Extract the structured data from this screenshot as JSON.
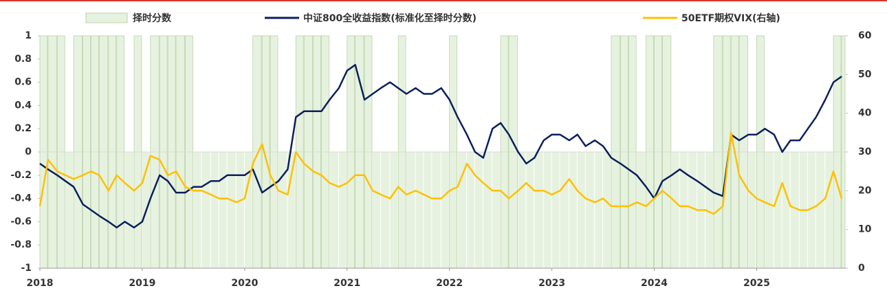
{
  "chart_data": {
    "type": "line",
    "x": [
      2018.0,
      2018.08,
      2018.17,
      2018.25,
      2018.33,
      2018.42,
      2018.5,
      2018.58,
      2018.67,
      2018.75,
      2018.83,
      2018.92,
      2019.0,
      2019.08,
      2019.17,
      2019.25,
      2019.33,
      2019.42,
      2019.5,
      2019.58,
      2019.67,
      2019.75,
      2019.83,
      2019.92,
      2020.0,
      2020.08,
      2020.17,
      2020.25,
      2020.33,
      2020.42,
      2020.5,
      2020.58,
      2020.67,
      2020.75,
      2020.83,
      2020.92,
      2021.0,
      2021.08,
      2021.17,
      2021.25,
      2021.33,
      2021.42,
      2021.5,
      2021.58,
      2021.67,
      2021.75,
      2021.83,
      2021.92,
      2022.0,
      2022.08,
      2022.17,
      2022.25,
      2022.33,
      2022.42,
      2022.5,
      2022.58,
      2022.67,
      2022.75,
      2022.83,
      2022.92,
      2023.0,
      2023.08,
      2023.17,
      2023.25,
      2023.33,
      2023.42,
      2023.5,
      2023.58,
      2023.67,
      2023.75,
      2023.83,
      2023.92,
      2024.0,
      2024.08,
      2024.17,
      2024.25,
      2024.33,
      2024.42,
      2024.5,
      2024.58,
      2024.67,
      2024.75,
      2024.83,
      2024.92,
      2025.0,
      2025.08,
      2025.17,
      2025.25,
      2025.33,
      2025.42,
      2025.5,
      2025.58,
      2025.67,
      2025.75,
      2025.83
    ],
    "series": [
      {
        "name": "择时分数",
        "type": "bar",
        "color": "#e6f2df",
        "values": [
          1,
          1,
          1,
          0,
          1,
          1,
          1,
          1,
          1,
          1,
          0,
          1,
          0,
          1,
          1,
          1,
          1,
          1,
          0,
          0,
          0,
          0,
          0,
          0,
          0,
          1,
          1,
          1,
          0,
          0,
          1,
          1,
          1,
          1,
          0,
          0,
          1,
          1,
          1,
          0,
          0,
          0,
          1,
          0,
          0,
          0,
          0,
          0,
          1,
          0,
          0,
          0,
          0,
          0,
          1,
          1,
          0,
          0,
          0,
          0,
          0,
          0,
          0,
          0,
          0,
          0,
          0,
          1,
          1,
          1,
          0,
          1,
          1,
          1,
          0,
          0,
          0,
          0,
          0,
          1,
          1,
          1,
          1,
          0,
          1,
          0,
          0,
          0,
          0,
          0,
          0,
          0,
          0,
          1,
          1
        ]
      },
      {
        "name": "中证800全收益指数(标准化至择时分数)",
        "type": "line",
        "color": "#0b1f5c",
        "values": [
          -0.1,
          -0.15,
          -0.2,
          -0.25,
          -0.3,
          -0.45,
          -0.5,
          -0.55,
          -0.6,
          -0.65,
          -0.6,
          -0.65,
          -0.6,
          -0.4,
          -0.2,
          -0.25,
          -0.35,
          -0.35,
          -0.3,
          -0.3,
          -0.25,
          -0.25,
          -0.2,
          -0.2,
          -0.2,
          -0.15,
          -0.35,
          -0.3,
          -0.25,
          -0.15,
          0.3,
          0.35,
          0.35,
          0.35,
          0.45,
          0.55,
          0.7,
          0.75,
          0.45,
          0.5,
          0.55,
          0.6,
          0.55,
          0.5,
          0.55,
          0.5,
          0.5,
          0.55,
          0.45,
          0.3,
          0.15,
          0.0,
          -0.05,
          0.2,
          0.25,
          0.15,
          0.0,
          -0.1,
          -0.05,
          0.1,
          0.15,
          0.15,
          0.1,
          0.15,
          0.05,
          0.1,
          0.05,
          -0.05,
          -0.1,
          -0.15,
          -0.2,
          -0.3,
          -0.4,
          -0.25,
          -0.2,
          -0.15,
          -0.2,
          -0.25,
          -0.3,
          -0.35,
          -0.38,
          0.15,
          0.1,
          0.15,
          0.15,
          0.2,
          0.15,
          0.0,
          0.1,
          0.1,
          0.2,
          0.3,
          0.45,
          0.6,
          0.65
        ]
      },
      {
        "name": "50ETF期权VIX(右轴)",
        "type": "line",
        "axis": "y2",
        "color": "#ffc000",
        "values": [
          16,
          28,
          25,
          24,
          23,
          24,
          25,
          24,
          20,
          24,
          22,
          20,
          22,
          29,
          28,
          24,
          25,
          21,
          20,
          20,
          19,
          18,
          18,
          17,
          18,
          27,
          32,
          24,
          20,
          19,
          30,
          27,
          25,
          24,
          22,
          21,
          22,
          24,
          24,
          20,
          19,
          18,
          21,
          19,
          20,
          19,
          18,
          18,
          20,
          21,
          27,
          24,
          22,
          20,
          20,
          18,
          20,
          22,
          20,
          20,
          19,
          20,
          23,
          20,
          18,
          17,
          18,
          16,
          16,
          16,
          17,
          16,
          18,
          20,
          18,
          16,
          16,
          15,
          15,
          14,
          16,
          35,
          24,
          20,
          18,
          17,
          16,
          22,
          16,
          15,
          15,
          16,
          18,
          25,
          18
        ]
      }
    ],
    "xlim": [
      2018,
      2025.87
    ],
    "xticks": [
      2018,
      2019,
      2020,
      2021,
      2022,
      2023,
      2024,
      2025
    ],
    "ylim": [
      -1,
      1
    ],
    "yticks": [
      1,
      0.8,
      0.6,
      0.4,
      0.2,
      0,
      -0.2,
      -0.4,
      -0.6,
      -0.8,
      -1
    ],
    "y2lim": [
      0,
      60
    ],
    "y2ticks": [
      60,
      50,
      40,
      30,
      20,
      10,
      0
    ]
  }
}
